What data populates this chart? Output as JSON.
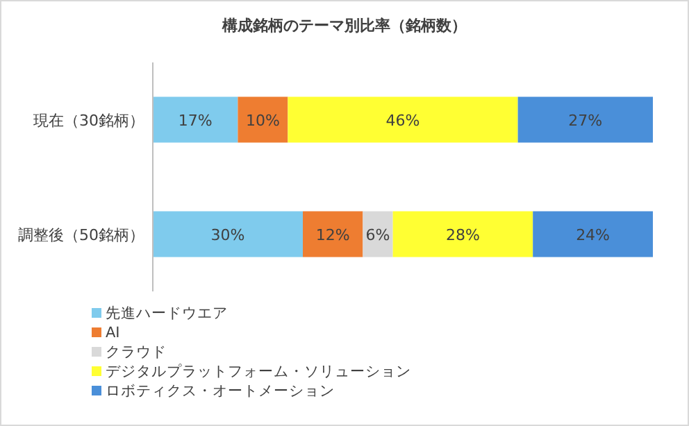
{
  "chart_data": {
    "type": "bar",
    "orientation": "horizontal",
    "stacked": true,
    "title": "構成銘柄のテーマ別比率（銘柄数）",
    "categories": [
      "現在（30銘柄）",
      "調整後（50銘柄）"
    ],
    "series": [
      {
        "name": "先進ハードウエア",
        "color": "#7fcbed",
        "values": [
          17,
          30
        ],
        "value_labels": [
          "17%",
          "30%"
        ]
      },
      {
        "name": "AI",
        "color": "#ee7d31",
        "values": [
          10,
          12
        ],
        "value_labels": [
          "10%",
          "12%"
        ]
      },
      {
        "name": "クラウド",
        "color": "#d9d9d9",
        "values": [
          null,
          6
        ],
        "value_labels": [
          null,
          "6%"
        ]
      },
      {
        "name": "デジタルプラットフォーム・ソリューション",
        "color": "#ffff33",
        "values": [
          46,
          28
        ],
        "value_labels": [
          "46%",
          "28%"
        ]
      },
      {
        "name": "ロボティクス・オートメーション",
        "color": "#4a8fd9",
        "values": [
          27,
          24
        ],
        "value_labels": [
          "27%",
          "24%"
        ]
      }
    ],
    "legend": "bottom left"
  }
}
